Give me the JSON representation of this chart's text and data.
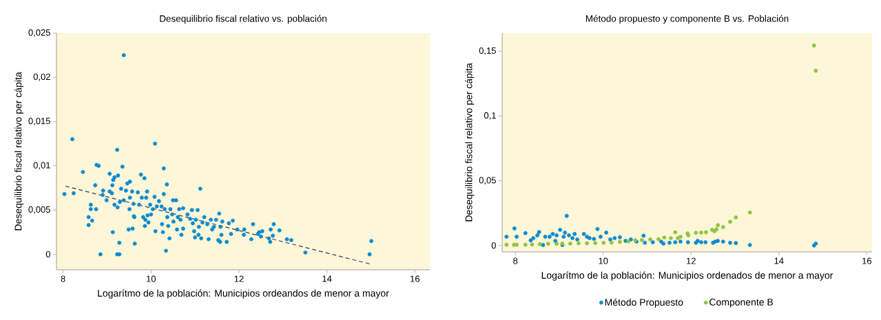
{
  "chart_data": [
    {
      "type": "scatter",
      "title": "Desequilibrio fiscal relativo vs. población",
      "xlabel": "Logarítmo de la población: Municipios ordeandos de menor a mayor",
      "ylabel": "Desequilibrio fiscal relativo per cápita",
      "marker": "circle",
      "xlim": [
        7.85,
        16.34
      ],
      "ylim": [
        -0.00175,
        0.025
      ],
      "xticks": [
        8,
        10,
        12,
        14,
        16
      ],
      "yticks": [
        {
          "value": 0,
          "label": "0"
        },
        {
          "value": 0.005,
          "label": "0,005"
        },
        {
          "value": 0.01,
          "label": "0,01"
        },
        {
          "value": 0.015,
          "label": "0,015"
        },
        {
          "value": 0.02,
          "label": "0,02"
        },
        {
          "value": 0.025,
          "label": "0,025"
        }
      ],
      "series": [
        {
          "type": "scatter",
          "color": "#0a8acf",
          "x": [
            8.03,
            8.21,
            8.24,
            8.45,
            8.58,
            8.58,
            8.63,
            8.63,
            8.66,
            8.73,
            8.75,
            8.76,
            8.81,
            8.85,
            8.91,
            8.9,
            8.99,
            9.06,
            9.06,
            9.11,
            9.12,
            9.13,
            9.14,
            9.17,
            9.17,
            9.23,
            9.25,
            9.24,
            9.23,
            9.28,
            9.28,
            9.29,
            9.32,
            9.35,
            9.38,
            9.38,
            9.43,
            9.46,
            9.52,
            9.49,
            9.51,
            9.52,
            9.57,
            9.58,
            9.61,
            9.62,
            9.63,
            9.6,
            9.7,
            9.73,
            9.77,
            9.79,
            9.82,
            9.85,
            9.86,
            9.87,
            9.89,
            9.91,
            9.92,
            9.94,
            9.98,
            10.0,
            10.04,
            10.08,
            10.09,
            10.1,
            10.13,
            10.18,
            10.24,
            10.25,
            10.27,
            10.29,
            10.29,
            10.31,
            10.34,
            10.36,
            10.37,
            10.39,
            10.42,
            10.44,
            10.48,
            10.5,
            10.51,
            10.57,
            10.59,
            10.61,
            10.64,
            10.67,
            10.69,
            10.73,
            10.73,
            10.83,
            10.89,
            10.93,
            10.95,
            10.98,
            11.0,
            11.02,
            11.06,
            11.08,
            11.09,
            11.12,
            11.14,
            11.17,
            11.21,
            11.28,
            11.31,
            11.36,
            11.39,
            11.43,
            11.48,
            11.53,
            11.55,
            11.57,
            11.58,
            11.6,
            11.62,
            11.72,
            11.77,
            11.82,
            11.86,
            11.96,
            12.11,
            12.12,
            12.28,
            12.32,
            12.43,
            12.46,
            12.5,
            12.53,
            12.68,
            12.71,
            12.72,
            12.77,
            12.79,
            12.92,
            13.09,
            13.19,
            13.51,
            14.97,
            15.01
          ],
          "values": [
            0.0068,
            0.013,
            0.0069,
            0.0093,
            0.0033,
            0.0042,
            0.0056,
            0.0051,
            0.0038,
            0.0078,
            0.0051,
            0.0101,
            0.01,
            0.0,
            0.0072,
            0.0067,
            0.0061,
            0.0091,
            0.0071,
            0.0069,
            0.0078,
            0.0025,
            0.0084,
            0.0087,
            0.0056,
            0.0118,
            0.0089,
            0.0053,
            0.0,
            0.0,
            0.0013,
            0.0059,
            0.0074,
            0.0099,
            0.0225,
            0.0061,
            0.0072,
            0.008,
            0.0082,
            0.0028,
            0.0051,
            0.0064,
            0.0071,
            0.0029,
            0.0043,
            0.0042,
            0.0012,
            0.0057,
            0.007,
            0.0056,
            0.009,
            0.0064,
            0.0042,
            0.0086,
            0.0032,
            0.0039,
            0.0064,
            0.0071,
            0.0044,
            0.0036,
            0.0056,
            0.0045,
            0.0051,
            0.0065,
            0.0125,
            0.0026,
            0.0054,
            0.006,
            0.0054,
            0.0034,
            0.0025,
            0.0097,
            0.0068,
            0.0051,
            0.0004,
            0.0079,
            0.0042,
            0.0032,
            0.0018,
            0.0051,
            0.0045,
            0.0061,
            0.0037,
            0.0061,
            0.0028,
            0.0042,
            0.0051,
            0.0039,
            0.0022,
            0.0052,
            0.0029,
            0.0045,
            0.004,
            0.005,
            0.0035,
            0.0026,
            0.0019,
            0.0039,
            0.005,
            0.0022,
            0.0031,
            0.0074,
            0.0018,
            0.0036,
            0.0042,
            0.0034,
            0.0017,
            0.0039,
            0.0028,
            0.0031,
            0.0039,
            0.0016,
            0.0046,
            0.0014,
            0.0031,
            0.0022,
            0.0037,
            0.0014,
            0.0035,
            0.0023,
            0.0038,
            0.0028,
            0.0022,
            0.0028,
            0.0017,
            0.0034,
            0.0023,
            0.0025,
            0.002,
            0.0026,
            0.0018,
            0.0014,
            0.0028,
            0.0021,
            0.0034,
            0.0027,
            0.0017,
            0.0016,
            0.0002,
            0.0,
            0.0015
          ]
        },
        {
          "type": "line",
          "color": "#3a3a5a",
          "marker": "none",
          "line_style": "dashed",
          "x": [
            8.05,
            14.98
          ],
          "values": [
            0.0077,
            -0.0011
          ]
        }
      ]
    },
    {
      "type": "scatter",
      "title": "Método propuesto y componente B vs. Población",
      "xlabel": "Logarítmo de la población: Municipios ordenados de menor a mayor",
      "ylabel": "Desequilibrio fiscal relativo per cápita",
      "marker": "circle",
      "legend": "bottom",
      "xlim": [
        7.7,
        16.12
      ],
      "ylim": [
        -0.0049,
        0.164
      ],
      "xticks": [
        8,
        10,
        12,
        14,
        16
      ],
      "yticks": [
        {
          "value": 0,
          "label": "0"
        },
        {
          "value": 0.05,
          "label": "0,05"
        },
        {
          "value": 0.1,
          "label": "0,1"
        },
        {
          "value": 0.15,
          "label": "0,15"
        }
      ],
      "series": [
        {
          "type": "scatter",
          "name": "Método Propuesto",
          "color": "#0a8acf",
          "x": [
            7.8,
            7.98,
            8.03,
            8.23,
            8.35,
            8.41,
            8.5,
            8.54,
            8.63,
            8.68,
            8.78,
            8.85,
            8.91,
            8.94,
            9.02,
            9.07,
            9.1,
            9.13,
            9.17,
            9.22,
            9.3,
            9.35,
            9.41,
            9.56,
            9.63,
            9.69,
            9.79,
            9.87,
            9.94,
            10.07,
            10.16,
            10.26,
            10.38,
            10.51,
            10.63,
            10.76,
            10.92,
            10.95,
            11.13,
            11.32,
            11.37,
            11.51,
            11.64,
            11.76,
            11.93,
            12.11,
            12.15,
            12.23,
            12.33,
            12.5,
            12.55,
            12.61,
            12.73,
            12.89,
            13.02,
            13.34,
            14.8,
            14.84
          ],
          "values": [
            0.0068,
            0.0132,
            0.0068,
            0.0096,
            0.004,
            0.0057,
            0.0079,
            0.0104,
            0.0004,
            0.0068,
            0.0068,
            0.0089,
            0.0036,
            0.0079,
            0.0121,
            0.0004,
            0.0068,
            0.01,
            0.0229,
            0.0079,
            0.0057,
            0.0089,
            0.0047,
            0.0089,
            0.0068,
            0.0057,
            0.0051,
            0.0127,
            0.0068,
            0.01,
            0.0047,
            0.0057,
            0.0064,
            0.0036,
            0.0047,
            0.003,
            0.0076,
            0.0021,
            0.0025,
            0.003,
            0.0015,
            0.0021,
            0.0025,
            0.003,
            0.0025,
            0.0021,
            0.0036,
            0.0025,
            0.0025,
            0.0021,
            0.003,
            0.0036,
            0.003,
            0.0021,
            0.0019,
            0.0004,
            0.0,
            0.0015
          ]
        },
        {
          "type": "scatter",
          "name": "Componente B",
          "color": "#8dc63f",
          "x": [
            7.8,
            7.97,
            8.03,
            8.23,
            8.38,
            8.56,
            8.75,
            8.94,
            9.07,
            9.25,
            9.44,
            9.63,
            9.82,
            10.01,
            10.19,
            10.38,
            10.57,
            10.73,
            10.88,
            11.07,
            11.26,
            11.39,
            11.54,
            11.64,
            11.7,
            11.76,
            11.92,
            11.94,
            12.11,
            12.23,
            12.34,
            12.48,
            12.53,
            12.58,
            12.61,
            12.73,
            12.89,
            13.02,
            13.34,
            14.8,
            14.84
          ],
          "values": [
            0.0006,
            0.0006,
            0.0006,
            0.0006,
            0.0008,
            0.0011,
            0.0013,
            0.0013,
            0.0015,
            0.0015,
            0.0017,
            0.0017,
            0.0019,
            0.0021,
            0.0023,
            0.0028,
            0.0032,
            0.004,
            0.0042,
            0.0047,
            0.0049,
            0.0062,
            0.0057,
            0.0102,
            0.0057,
            0.0068,
            0.0093,
            0.0079,
            0.0098,
            0.01,
            0.0102,
            0.0121,
            0.011,
            0.0125,
            0.0157,
            0.0142,
            0.0183,
            0.0217,
            0.0255,
            0.1544,
            0.1349
          ]
        }
      ]
    }
  ]
}
